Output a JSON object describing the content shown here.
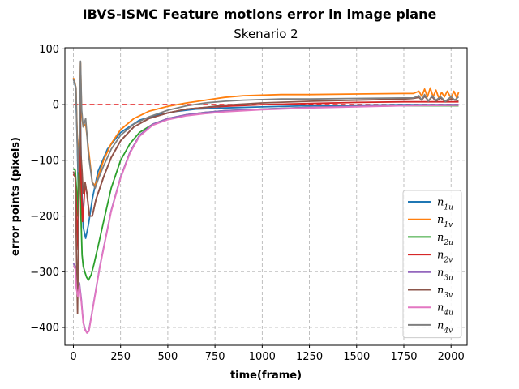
{
  "chart_data": {
    "type": "line",
    "suptitle": "IBVS-ISMC Feature motions error in image plane",
    "title": "Skenario 2",
    "xlabel": "time(frame)",
    "ylabel": "error points (pixels)",
    "xlim": [
      -45,
      2085
    ],
    "ylim": [
      -432,
      102
    ],
    "xticks": [
      0,
      250,
      500,
      750,
      1000,
      1250,
      1500,
      1750,
      2000
    ],
    "yticks": [
      100,
      0,
      -100,
      -200,
      -300,
      -400
    ],
    "grid": true,
    "legend_position": "lower right",
    "reference_line": {
      "y": 0,
      "color": "#e41a1c",
      "style": "dashed"
    },
    "series": [
      {
        "name": "n1u",
        "sub": "1u",
        "color": "#1f77b4",
        "points": [
          [
            0,
            47
          ],
          [
            12,
            30
          ],
          [
            20,
            -60
          ],
          [
            28,
            -180
          ],
          [
            35,
            40
          ],
          [
            42,
            -130
          ],
          [
            52,
            -220
          ],
          [
            65,
            -240
          ],
          [
            80,
            -215
          ],
          [
            100,
            -170
          ],
          [
            130,
            -120
          ],
          [
            180,
            -80
          ],
          [
            250,
            -50
          ],
          [
            350,
            -28
          ],
          [
            450,
            -18
          ],
          [
            550,
            -12
          ],
          [
            650,
            -8
          ],
          [
            800,
            -6
          ],
          [
            1000,
            -4
          ],
          [
            1250,
            -2
          ],
          [
            1500,
            -1
          ],
          [
            1750,
            0
          ],
          [
            2040,
            0
          ]
        ]
      },
      {
        "name": "n1v",
        "sub": "1v",
        "color": "#ff7f0e",
        "points": [
          [
            0,
            48
          ],
          [
            8,
            40
          ],
          [
            14,
            30
          ],
          [
            20,
            -50
          ],
          [
            26,
            -100
          ],
          [
            32,
            -60
          ],
          [
            38,
            75
          ],
          [
            44,
            -20
          ],
          [
            52,
            -40
          ],
          [
            65,
            -35
          ],
          [
            80,
            -80
          ],
          [
            100,
            -140
          ],
          [
            115,
            -145
          ],
          [
            130,
            -130
          ],
          [
            160,
            -100
          ],
          [
            200,
            -70
          ],
          [
            250,
            -45
          ],
          [
            320,
            -25
          ],
          [
            400,
            -12
          ],
          [
            500,
            -3
          ],
          [
            600,
            3
          ],
          [
            700,
            8
          ],
          [
            800,
            13
          ],
          [
            900,
            16
          ],
          [
            1000,
            17
          ],
          [
            1100,
            18
          ],
          [
            1250,
            18
          ],
          [
            1500,
            19
          ],
          [
            1750,
            20
          ],
          [
            1800,
            20
          ],
          [
            1830,
            24
          ],
          [
            1845,
            15
          ],
          [
            1860,
            28
          ],
          [
            1875,
            14
          ],
          [
            1890,
            30
          ],
          [
            1905,
            14
          ],
          [
            1920,
            26
          ],
          [
            1935,
            12
          ],
          [
            1950,
            22
          ],
          [
            1965,
            14
          ],
          [
            1980,
            24
          ],
          [
            2000,
            12
          ],
          [
            2015,
            24
          ],
          [
            2030,
            12
          ],
          [
            2040,
            22
          ]
        ]
      },
      {
        "name": "n2u",
        "sub": "2u",
        "color": "#2ca02c",
        "points": [
          [
            0,
            -115
          ],
          [
            10,
            -118
          ],
          [
            16,
            -150
          ],
          [
            22,
            -200
          ],
          [
            28,
            -100
          ],
          [
            34,
            -60
          ],
          [
            40,
            -200
          ],
          [
            46,
            -270
          ],
          [
            52,
            -290
          ],
          [
            60,
            -300
          ],
          [
            70,
            -310
          ],
          [
            80,
            -315
          ],
          [
            95,
            -305
          ],
          [
            110,
            -285
          ],
          [
            130,
            -255
          ],
          [
            160,
            -210
          ],
          [
            200,
            -150
          ],
          [
            250,
            -100
          ],
          [
            300,
            -70
          ],
          [
            350,
            -50
          ],
          [
            420,
            -35
          ],
          [
            500,
            -25
          ],
          [
            600,
            -18
          ],
          [
            700,
            -14
          ],
          [
            800,
            -11
          ],
          [
            1000,
            -8
          ],
          [
            1250,
            -5
          ],
          [
            1500,
            -3
          ],
          [
            1750,
            -2
          ],
          [
            2040,
            -2
          ]
        ]
      },
      {
        "name": "n2v",
        "sub": "2v",
        "color": "#d62728",
        "points": [
          [
            0,
            -125
          ],
          [
            10,
            -130
          ],
          [
            18,
            -200
          ],
          [
            24,
            -260
          ],
          [
            30,
            -140
          ],
          [
            36,
            -80
          ],
          [
            42,
            -150
          ],
          [
            48,
            -210
          ],
          [
            55,
            -180
          ],
          [
            62,
            -140
          ],
          [
            72,
            -160
          ],
          [
            85,
            -200
          ],
          [
            100,
            -200
          ],
          [
            120,
            -170
          ],
          [
            160,
            -130
          ],
          [
            200,
            -95
          ],
          [
            250,
            -65
          ],
          [
            320,
            -40
          ],
          [
            400,
            -25
          ],
          [
            500,
            -15
          ],
          [
            600,
            -8
          ],
          [
            700,
            -5
          ],
          [
            800,
            -3
          ],
          [
            1000,
            0
          ],
          [
            1250,
            2
          ],
          [
            1500,
            4
          ],
          [
            1750,
            5
          ],
          [
            2040,
            5
          ]
        ]
      },
      {
        "name": "n3u",
        "sub": "3u",
        "color": "#9467bd",
        "points": [
          [
            0,
            -285
          ],
          [
            10,
            -290
          ],
          [
            16,
            -330
          ],
          [
            24,
            -340
          ],
          [
            32,
            -320
          ],
          [
            42,
            -350
          ],
          [
            52,
            -390
          ],
          [
            62,
            -403
          ],
          [
            72,
            -410
          ],
          [
            82,
            -405
          ],
          [
            95,
            -380
          ],
          [
            115,
            -340
          ],
          [
            140,
            -290
          ],
          [
            170,
            -240
          ],
          [
            200,
            -190
          ],
          [
            250,
            -130
          ],
          [
            300,
            -85
          ],
          [
            350,
            -55
          ],
          [
            420,
            -35
          ],
          [
            500,
            -25
          ],
          [
            600,
            -18
          ],
          [
            700,
            -14
          ],
          [
            800,
            -11
          ],
          [
            1000,
            -8
          ],
          [
            1250,
            -5
          ],
          [
            1500,
            -3
          ],
          [
            1750,
            -1
          ],
          [
            2040,
            0
          ]
        ]
      },
      {
        "name": "n3v",
        "sub": "3v",
        "color": "#8c564b",
        "points": [
          [
            0,
            -120
          ],
          [
            10,
            -130
          ],
          [
            16,
            -260
          ],
          [
            22,
            -375
          ],
          [
            28,
            -200
          ],
          [
            34,
            40
          ],
          [
            40,
            -90
          ],
          [
            46,
            -120
          ],
          [
            52,
            -160
          ],
          [
            62,
            -140
          ],
          [
            72,
            -160
          ],
          [
            85,
            -200
          ],
          [
            100,
            -200
          ],
          [
            120,
            -170
          ],
          [
            160,
            -130
          ],
          [
            200,
            -95
          ],
          [
            250,
            -65
          ],
          [
            320,
            -40
          ],
          [
            400,
            -25
          ],
          [
            500,
            -15
          ],
          [
            600,
            -8
          ],
          [
            700,
            -5
          ],
          [
            800,
            -1
          ],
          [
            1000,
            3
          ],
          [
            1250,
            6
          ],
          [
            1500,
            8
          ],
          [
            1750,
            10
          ],
          [
            1800,
            11
          ],
          [
            1830,
            13
          ],
          [
            1845,
            8
          ],
          [
            1860,
            15
          ],
          [
            1880,
            7
          ],
          [
            1900,
            14
          ],
          [
            1920,
            6
          ],
          [
            1945,
            12
          ],
          [
            1970,
            5
          ],
          [
            2000,
            10
          ],
          [
            2040,
            7
          ]
        ]
      },
      {
        "name": "n4u",
        "sub": "4u",
        "color": "#e377c2",
        "points": [
          [
            0,
            -290
          ],
          [
            10,
            -295
          ],
          [
            16,
            -330
          ],
          [
            24,
            -345
          ],
          [
            32,
            -325
          ],
          [
            42,
            -355
          ],
          [
            52,
            -392
          ],
          [
            62,
            -405
          ],
          [
            72,
            -410
          ],
          [
            82,
            -407
          ],
          [
            95,
            -382
          ],
          [
            115,
            -342
          ],
          [
            140,
            -292
          ],
          [
            170,
            -242
          ],
          [
            200,
            -192
          ],
          [
            250,
            -132
          ],
          [
            300,
            -87
          ],
          [
            350,
            -57
          ],
          [
            420,
            -37
          ],
          [
            500,
            -27
          ],
          [
            600,
            -20
          ],
          [
            700,
            -16
          ],
          [
            800,
            -13
          ],
          [
            1000,
            -9
          ],
          [
            1250,
            -6
          ],
          [
            1500,
            -4
          ],
          [
            1750,
            -2
          ],
          [
            2040,
            -1
          ]
        ]
      },
      {
        "name": "n4v",
        "sub": "4v",
        "color": "#7f7f7f",
        "points": [
          [
            0,
            45
          ],
          [
            8,
            38
          ],
          [
            14,
            30
          ],
          [
            20,
            -60
          ],
          [
            26,
            -120
          ],
          [
            32,
            -60
          ],
          [
            38,
            78
          ],
          [
            44,
            -10
          ],
          [
            52,
            -40
          ],
          [
            65,
            -25
          ],
          [
            80,
            -90
          ],
          [
            100,
            -140
          ],
          [
            115,
            -150
          ],
          [
            130,
            -135
          ],
          [
            160,
            -110
          ],
          [
            200,
            -80
          ],
          [
            250,
            -55
          ],
          [
            320,
            -35
          ],
          [
            400,
            -22
          ],
          [
            500,
            -10
          ],
          [
            600,
            -2
          ],
          [
            700,
            3
          ],
          [
            800,
            6
          ],
          [
            900,
            8
          ],
          [
            1000,
            9
          ],
          [
            1100,
            10
          ],
          [
            1250,
            10
          ],
          [
            1500,
            11
          ],
          [
            1750,
            12
          ],
          [
            1800,
            12
          ],
          [
            1830,
            16
          ],
          [
            1845,
            8
          ],
          [
            1860,
            18
          ],
          [
            1880,
            6
          ],
          [
            1900,
            16
          ],
          [
            1920,
            8
          ],
          [
            1945,
            14
          ],
          [
            1970,
            6
          ],
          [
            2000,
            14
          ],
          [
            2020,
            8
          ],
          [
            2040,
            14
          ]
        ]
      }
    ]
  }
}
